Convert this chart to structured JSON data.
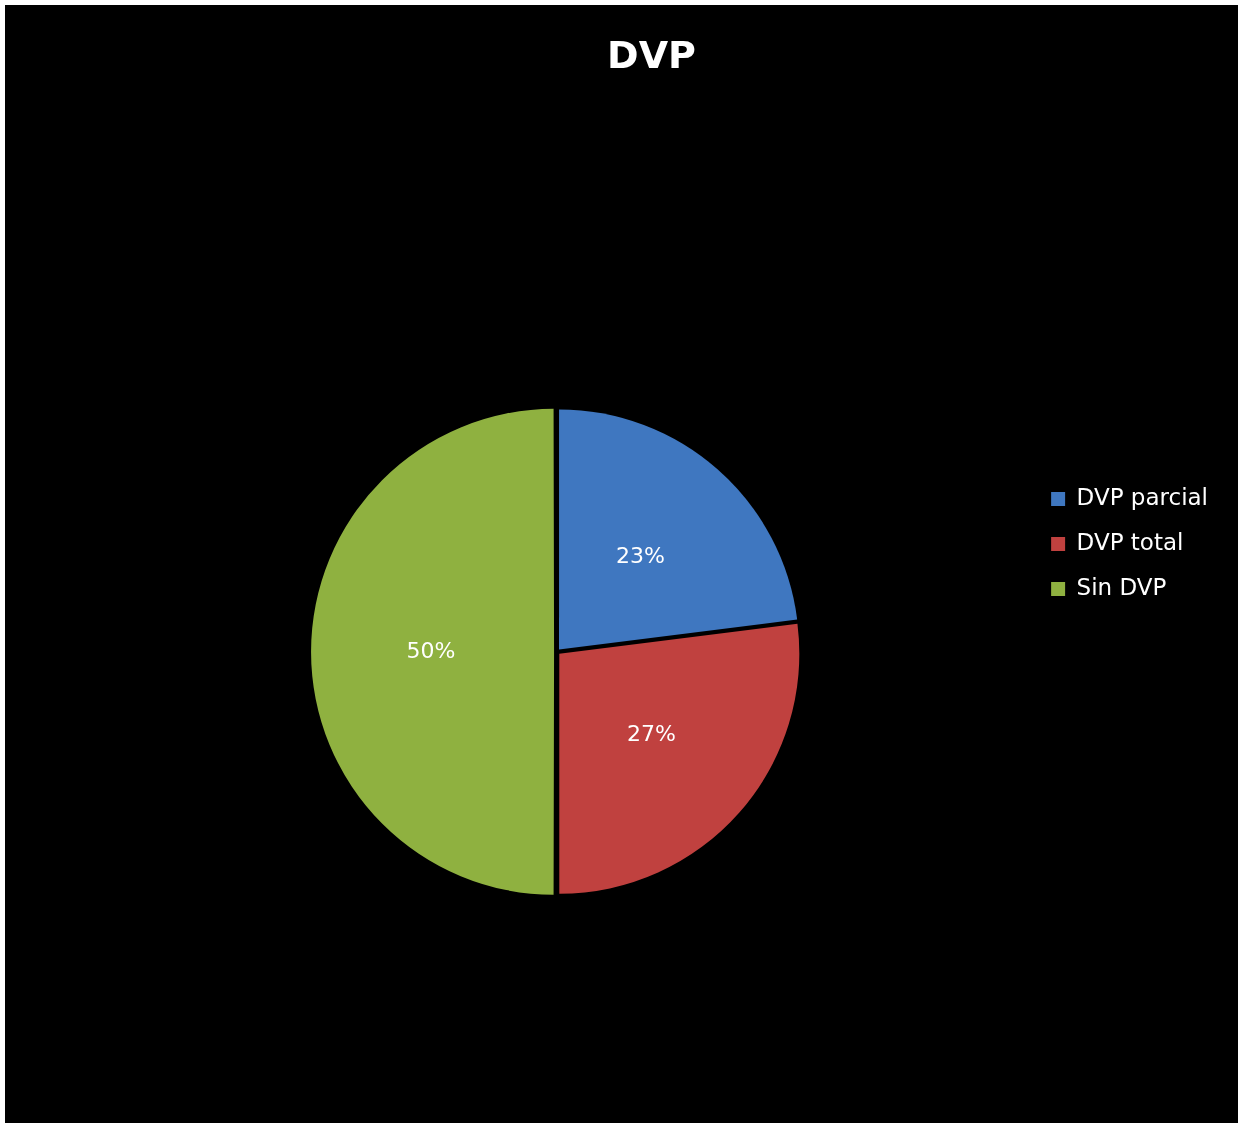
{
  "chart_data": {
    "type": "pie",
    "title": "DVP",
    "categories": [
      "DVP parcial",
      "DVP total",
      "Sin DVP"
    ],
    "values": [
      23,
      27,
      50
    ],
    "colors": [
      "#3f77c0",
      "#c0413f",
      "#8fb140"
    ],
    "value_labels": [
      "23%",
      "27%",
      "50%"
    ],
    "legend": "right"
  }
}
